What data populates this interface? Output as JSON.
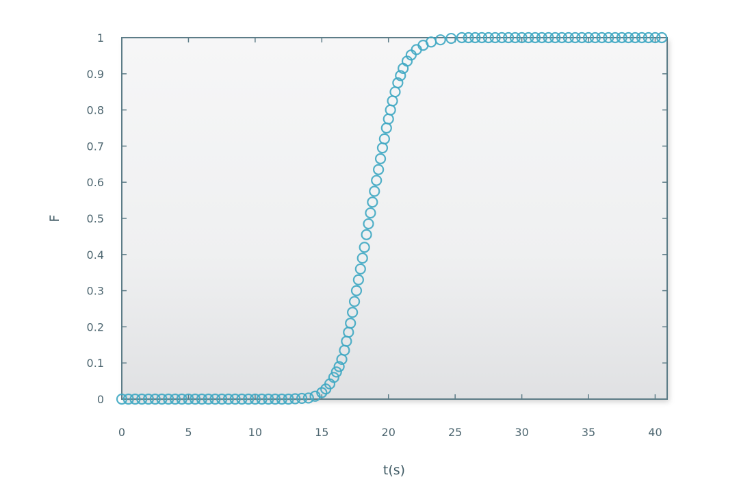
{
  "chart_data": {
    "type": "scatter",
    "title": "",
    "xlabel": "t(s)",
    "ylabel": "F",
    "xlim": [
      0,
      40.9
    ],
    "ylim": [
      0,
      1
    ],
    "xticks": [
      0,
      5,
      10,
      15,
      20,
      25,
      30,
      35,
      40
    ],
    "yticks": [
      0,
      0.1,
      0.2,
      0.3,
      0.4,
      0.5,
      0.6,
      0.7,
      0.8,
      0.9,
      1
    ],
    "ytick_labels": [
      "0",
      "0.1",
      "0.2",
      "0.3",
      "0.4",
      "0.5",
      "0.6",
      "0.7",
      "0.8",
      "0.9",
      "1"
    ],
    "grid": false,
    "marker": "open-circle",
    "marker_color": "#3ea7c2",
    "series": [
      {
        "x": [
          0,
          0.5,
          1,
          1.5,
          2,
          2.5,
          3,
          3.5,
          4,
          4.5,
          5,
          5.5,
          6,
          6.5,
          7,
          7.5,
          8,
          8.5,
          9,
          9.5,
          10,
          10.5,
          11,
          11.5,
          12,
          12.5,
          13,
          13.5,
          14,
          14.5,
          15,
          15.3,
          15.6,
          15.9,
          16.1,
          16.3,
          16.5,
          16.7,
          16.85,
          17,
          17.15,
          17.3,
          17.45,
          17.6,
          17.75,
          17.9,
          18.05,
          18.2,
          18.35,
          18.5,
          18.65,
          18.8,
          18.95,
          19.1,
          19.25,
          19.4,
          19.55,
          19.7,
          19.85,
          20,
          20.15,
          20.3,
          20.5,
          20.7,
          20.9,
          21.1,
          21.4,
          21.7,
          22.1,
          22.6,
          23.2,
          23.9,
          24.7,
          25.5,
          26,
          26.5,
          27,
          27.5,
          28,
          28.5,
          29,
          29.5,
          30,
          30.5,
          31,
          31.5,
          32,
          32.5,
          33,
          33.5,
          34,
          34.5,
          35,
          35.5,
          36,
          36.5,
          37,
          37.5,
          38,
          38.5,
          39,
          39.5,
          40,
          40.5
        ],
        "y": [
          0,
          0,
          0,
          0,
          0,
          0,
          0,
          0,
          0,
          0,
          0,
          0,
          0,
          0,
          0,
          0,
          0,
          0,
          0,
          0,
          0,
          0,
          0,
          0,
          0,
          0,
          0.001,
          0.002,
          0.003,
          0.008,
          0.018,
          0.028,
          0.042,
          0.06,
          0.075,
          0.09,
          0.11,
          0.135,
          0.16,
          0.185,
          0.21,
          0.24,
          0.27,
          0.3,
          0.33,
          0.36,
          0.39,
          0.42,
          0.455,
          0.485,
          0.515,
          0.545,
          0.575,
          0.605,
          0.635,
          0.665,
          0.695,
          0.72,
          0.75,
          0.775,
          0.8,
          0.825,
          0.85,
          0.875,
          0.895,
          0.915,
          0.935,
          0.952,
          0.967,
          0.979,
          0.988,
          0.994,
          0.998,
          1,
          1,
          1,
          1,
          1,
          1,
          1,
          1,
          1,
          1,
          1,
          1,
          1,
          1,
          1,
          1,
          1,
          1,
          1,
          1,
          1,
          1,
          1,
          1,
          1,
          1,
          1,
          1,
          1,
          1,
          1
        ]
      }
    ]
  }
}
